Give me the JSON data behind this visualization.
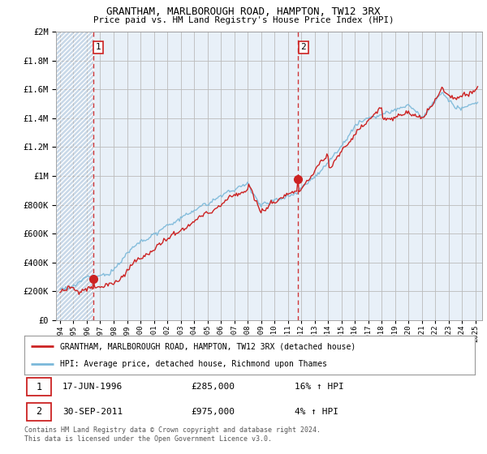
{
  "title1": "GRANTHAM, MARLBOROUGH ROAD, HAMPTON, TW12 3RX",
  "title2": "Price paid vs. HM Land Registry's House Price Index (HPI)",
  "legend_line1": "GRANTHAM, MARLBOROUGH ROAD, HAMPTON, TW12 3RX (detached house)",
  "legend_line2": "HPI: Average price, detached house, Richmond upon Thames",
  "table_row1_date": "17-JUN-1996",
  "table_row1_price": "£285,000",
  "table_row1_hpi": "16% ↑ HPI",
  "table_row2_date": "30-SEP-2011",
  "table_row2_price": "£975,000",
  "table_row2_hpi": "4% ↑ HPI",
  "footer": "Contains HM Land Registry data © Crown copyright and database right 2024.\nThis data is licensed under the Open Government Licence v3.0.",
  "sale1_year": 1996.46,
  "sale1_price": 285000,
  "sale2_year": 2011.75,
  "sale2_price": 975000,
  "hpi_color": "#7ab8d9",
  "price_color": "#cc2222",
  "ylim_max": 2000000,
  "xlim_min": 1993.7,
  "xlim_max": 2025.5,
  "bg_left_color": "#d8e8f0",
  "bg_right_color": "#e8f0f8"
}
